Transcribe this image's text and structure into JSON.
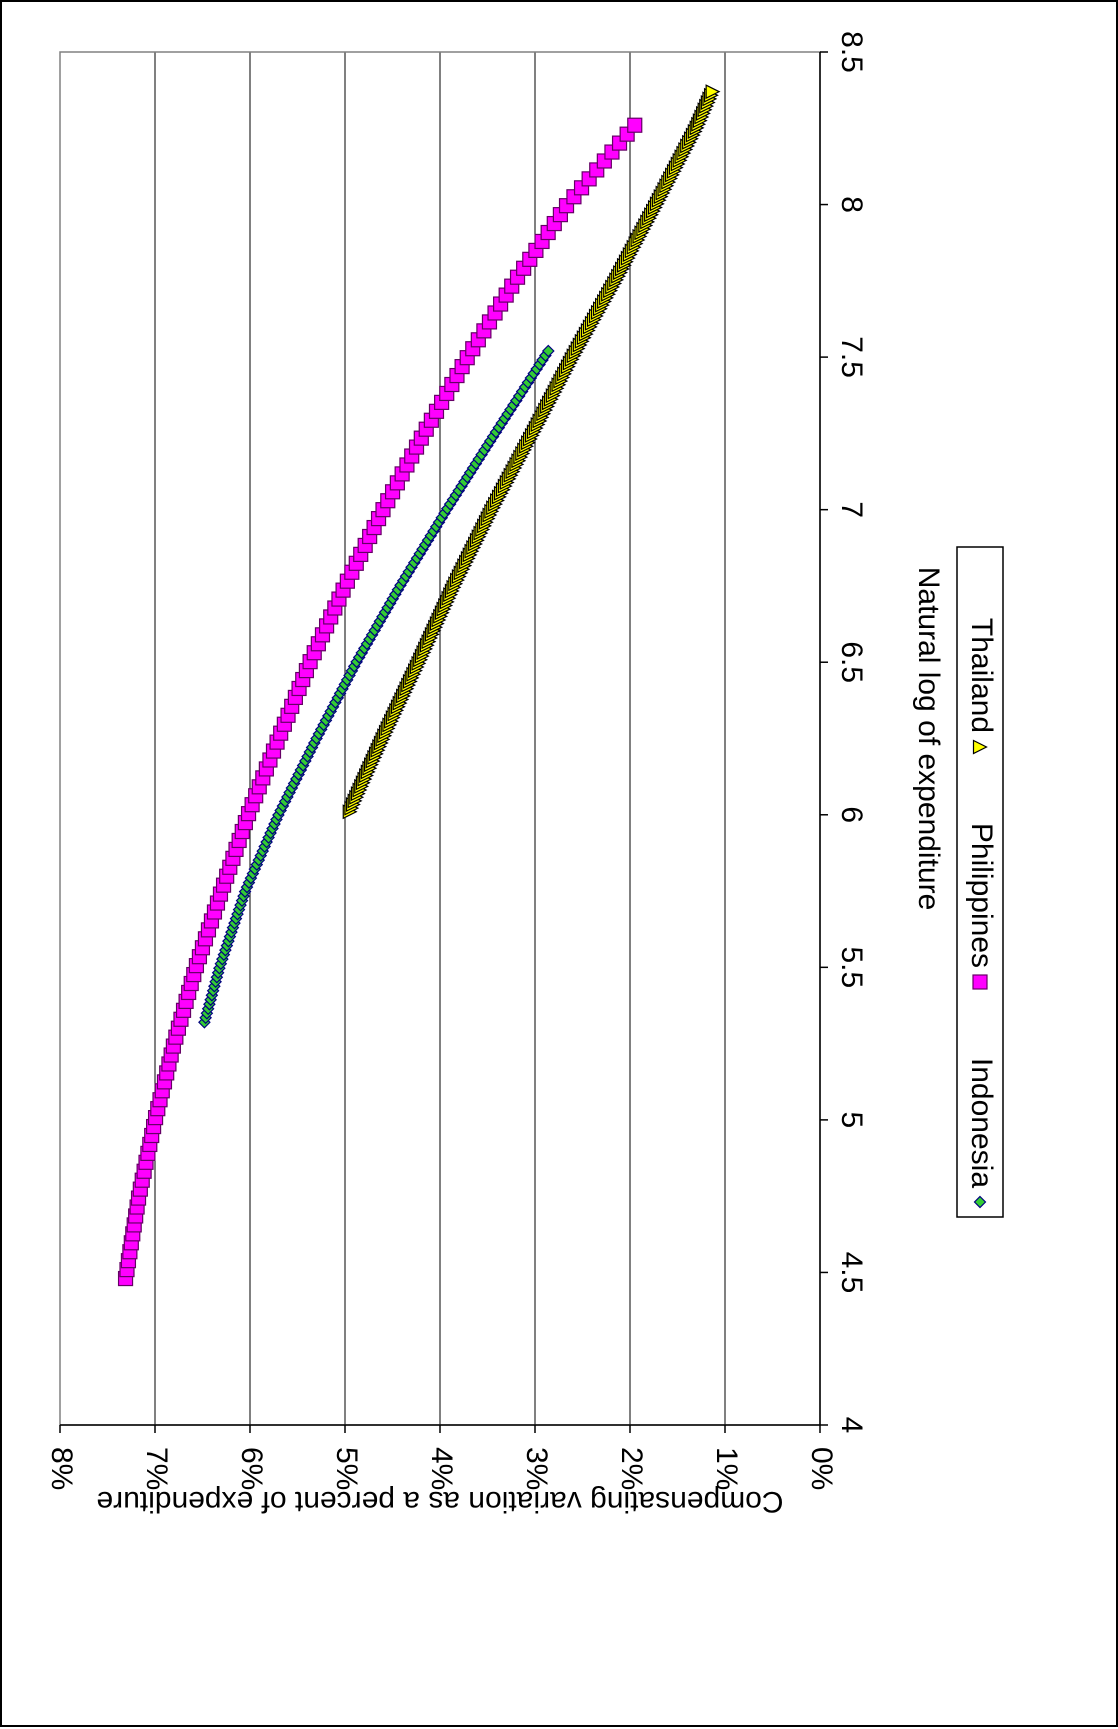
{
  "chart_data": {
    "type": "scatter",
    "xlabel": "Natural log of expenditure",
    "ylabel": "Compensating variation as a percent of expenditure",
    "xlim": [
      4,
      8.5
    ],
    "ylim": [
      0,
      8
    ],
    "x_ticks": [
      "4",
      "4.5",
      "5",
      "5.5",
      "6",
      "6.5",
      "7",
      "7.5",
      "8",
      "8.5"
    ],
    "y_ticks": [
      "0%",
      "1%",
      "2%",
      "3%",
      "4%",
      "5%",
      "6%",
      "7%",
      "8%"
    ],
    "grid": "horizontal major gridlines",
    "legend_position": "bottom",
    "orientation": "rotated 90 degrees clockwise",
    "series": [
      {
        "name": "Indonesia",
        "marker": "diamond",
        "color": "#33cc33",
        "line_color": "#000080",
        "x_start": 5.32,
        "x_end": 7.52,
        "points_count": 150,
        "x": [
          5.32,
          5.5,
          5.75,
          6.0,
          6.25,
          6.5,
          6.75,
          7.0,
          7.25,
          7.52
        ],
        "y": [
          6.48,
          6.32,
          6.05,
          5.7,
          5.3,
          4.88,
          4.42,
          3.93,
          3.42,
          2.86
        ]
      },
      {
        "name": "Philippines",
        "marker": "square",
        "color": "#ff00ff",
        "line_color": "#660066",
        "x_start": 4.48,
        "x_end": 8.26,
        "points_count": 130,
        "x": [
          4.48,
          4.75,
          5.0,
          5.25,
          5.5,
          5.75,
          6.0,
          6.25,
          6.5,
          6.75,
          7.0,
          7.25,
          7.5,
          7.75,
          8.0,
          8.26
        ],
        "y": [
          7.31,
          7.17,
          7.0,
          6.8,
          6.57,
          6.3,
          6.02,
          5.7,
          5.37,
          5.0,
          4.6,
          4.17,
          3.71,
          3.21,
          2.66,
          1.95
        ]
      },
      {
        "name": "Thailand",
        "marker": "triangle",
        "color": "#ffff00",
        "line_color": "#000000",
        "x_start": 6.01,
        "x_end": 8.37,
        "points_count": 200,
        "x": [
          6.01,
          6.25,
          6.5,
          6.75,
          7.0,
          7.25,
          7.5,
          7.75,
          8.0,
          8.25,
          8.37
        ],
        "y": [
          4.95,
          4.6,
          4.22,
          3.85,
          3.45,
          3.02,
          2.6,
          2.15,
          1.72,
          1.3,
          1.13
        ]
      }
    ]
  }
}
